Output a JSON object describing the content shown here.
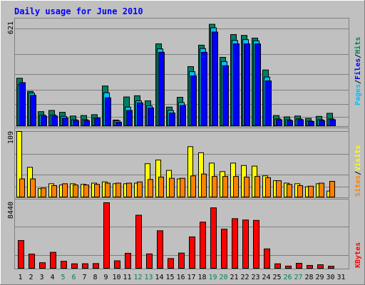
{
  "title": "Daily usage for June 2010",
  "chart_data": [
    {
      "type": "bar",
      "panel": "pages-files-hits",
      "ylabel_parts": [
        "Pages",
        "/",
        "Files",
        "/",
        "Hits"
      ],
      "ymax_label": "621",
      "ylim": [
        0,
        621
      ],
      "categories": [
        "1",
        "2",
        "3",
        "4",
        "5",
        "6",
        "7",
        "8",
        "9",
        "10",
        "11",
        "12",
        "13",
        "14",
        "15",
        "16",
        "17",
        "18",
        "19",
        "20",
        "21",
        "22",
        "23",
        "24",
        "25",
        "26",
        "27",
        "28",
        "29",
        "30",
        "31"
      ],
      "series": [
        {
          "name": "Hits",
          "color": "#008060",
          "values": [
            286,
            208,
            88,
            95,
            84,
            62,
            65,
            70,
            240,
            38,
            175,
            182,
            152,
            490,
            115,
            173,
            355,
            482,
            606,
            410,
            545,
            540,
            524,
            335,
            65,
            57,
            62,
            48,
            60,
            78,
            0
          ]
        },
        {
          "name": "Files",
          "color": "#00c0ff",
          "values": [
            248,
            198,
            68,
            68,
            60,
            40,
            40,
            50,
            200,
            33,
            115,
            152,
            122,
            460,
            95,
            142,
            325,
            462,
            585,
            385,
            510,
            515,
            508,
            293,
            45,
            40,
            45,
            32,
            40,
            45,
            0
          ]
        },
        {
          "name": "Pages",
          "color": "#0000ff",
          "values": [
            260,
            185,
            62,
            62,
            50,
            35,
            35,
            50,
            170,
            25,
            95,
            140,
            110,
            440,
            80,
            125,
            300,
            440,
            560,
            360,
            490,
            490,
            490,
            270,
            40,
            35,
            40,
            30,
            35,
            40,
            0
          ]
        }
      ]
    },
    {
      "type": "bar",
      "panel": "sites-visits",
      "ylabel_parts": [
        "Sites",
        "/",
        "Visits"
      ],
      "ymax_label": "109",
      "ylim": [
        0,
        109
      ],
      "categories": [
        "1",
        "2",
        "3",
        "4",
        "5",
        "6",
        "7",
        "8",
        "9",
        "10",
        "11",
        "12",
        "13",
        "14",
        "15",
        "16",
        "17",
        "18",
        "19",
        "20",
        "21",
        "22",
        "23",
        "24",
        "25",
        "26",
        "27",
        "28",
        "29",
        "30",
        "31"
      ],
      "series": [
        {
          "name": "Visits",
          "color": "#ffff00",
          "values": [
            109,
            50,
            15,
            23,
            21,
            23,
            22,
            24,
            26,
            23,
            23,
            24,
            56,
            62,
            45,
            31,
            84,
            74,
            57,
            43,
            57,
            53,
            52,
            36,
            28,
            24,
            23,
            18,
            23,
            11,
            0
          ]
        },
        {
          "name": "Sites",
          "color": "#ff8000",
          "values": [
            31,
            31,
            16,
            20,
            23,
            21,
            21,
            22,
            24,
            24,
            24,
            26,
            30,
            34,
            32,
            32,
            36,
            39,
            35,
            35,
            35,
            34,
            35,
            33,
            28,
            22,
            20,
            19,
            24,
            27,
            0
          ]
        }
      ]
    },
    {
      "type": "bar",
      "panel": "kbytes",
      "ylabel": "KBytes",
      "ymax_label": "8440",
      "ylim": [
        0,
        8440
      ],
      "categories": [
        "1",
        "2",
        "3",
        "4",
        "5",
        "6",
        "7",
        "8",
        "9",
        "10",
        "11",
        "12",
        "13",
        "14",
        "15",
        "16",
        "17",
        "18",
        "19",
        "20",
        "21",
        "22",
        "23",
        "24",
        "25",
        "26",
        "27",
        "28",
        "29",
        "30",
        "31"
      ],
      "series": [
        {
          "name": "KBytes",
          "color": "#ff0000",
          "values": [
            3625,
            1900,
            800,
            2120,
            980,
            660,
            670,
            690,
            8440,
            1040,
            2000,
            6850,
            1920,
            4870,
            1330,
            2030,
            4090,
            5970,
            7790,
            5070,
            6410,
            6240,
            6190,
            2560,
            660,
            370,
            720,
            450,
            540,
            350,
            0
          ]
        }
      ]
    }
  ],
  "x_label_colors": [
    "#000000",
    "#000000",
    "#000000",
    "#000000",
    "#008060",
    "#008060",
    "#000000",
    "#000000",
    "#000000",
    "#000000",
    "#000000",
    "#008060",
    "#008060",
    "#000000",
    "#000000",
    "#000000",
    "#000000",
    "#000000",
    "#008060",
    "#008060",
    "#000000",
    "#000000",
    "#000000",
    "#000000",
    "#000000",
    "#008060",
    "#008060",
    "#000000",
    "#000000",
    "#000000",
    "#000000"
  ],
  "colors": {
    "hits": "#008060",
    "files": "#00c0ff",
    "pages": "#0000ff",
    "visits": "#ffff00",
    "sites": "#ff8000",
    "kbytes": "#ff0000",
    "title": "#0000ff",
    "background": "#c0c0c0",
    "plot": "#c0c0c0",
    "grid": "#808080"
  }
}
